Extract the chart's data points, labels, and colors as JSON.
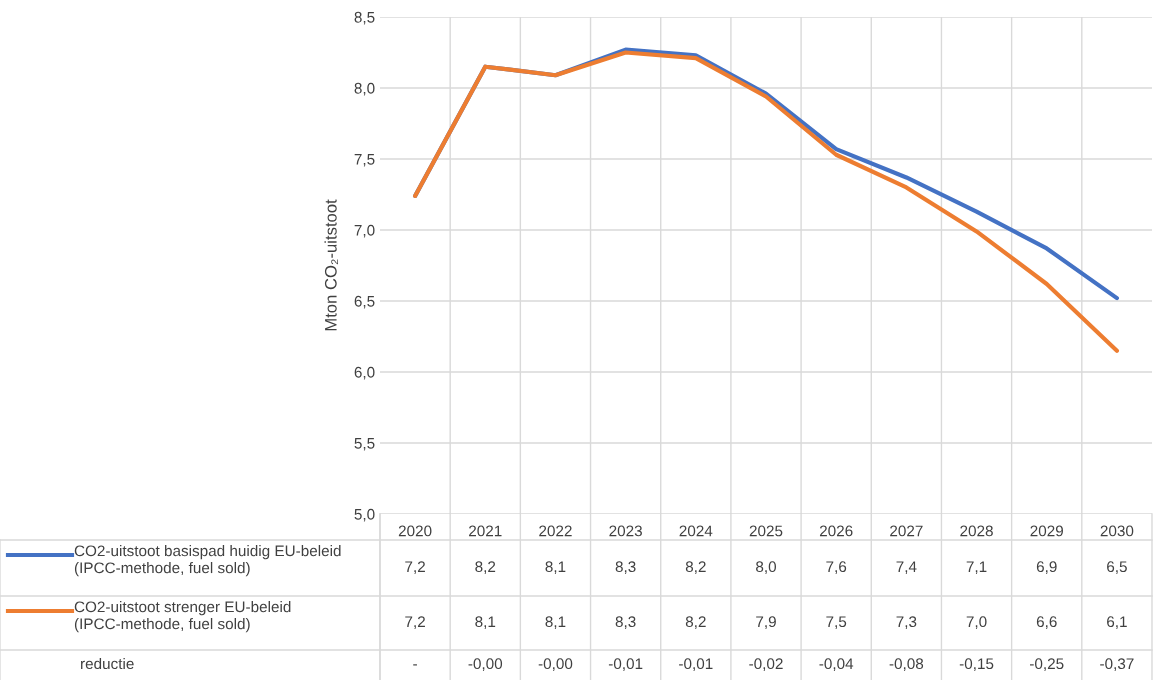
{
  "chart_data": {
    "type": "line",
    "ylabel": "Mton CO₂-uitstoot",
    "categories": [
      "2020",
      "2021",
      "2022",
      "2023",
      "2024",
      "2025",
      "2026",
      "2027",
      "2028",
      "2029",
      "2030"
    ],
    "series": [
      {
        "name": "CO2-uitstoot basispad huidig EU-beleid\n(IPCC-methode, fuel sold)",
        "color": "#4472c4",
        "values": [
          7.24,
          8.15,
          8.09,
          8.27,
          8.23,
          7.96,
          7.57,
          7.37,
          7.13,
          6.87,
          6.52
        ],
        "value_labels": [
          "7,2",
          "8,2",
          "8,1",
          "8,3",
          "8,2",
          "8,0",
          "7,6",
          "7,4",
          "7,1",
          "6,9",
          "6,5"
        ]
      },
      {
        "name": "CO2-uitstoot strenger EU-beleid\n(IPCC-methode, fuel sold)",
        "color": "#ed7d31",
        "values": [
          7.24,
          8.15,
          8.09,
          8.25,
          8.21,
          7.94,
          7.53,
          7.3,
          6.99,
          6.62,
          6.15
        ],
        "value_labels": [
          "7,2",
          "8,1",
          "8,1",
          "8,3",
          "8,2",
          "7,9",
          "7,5",
          "7,3",
          "7,0",
          "6,6",
          "6,1"
        ]
      },
      {
        "name": "reductie",
        "values": [
          null,
          null,
          null,
          null,
          null,
          null,
          null,
          null,
          null,
          null,
          null
        ],
        "value_labels": [
          "-",
          "-0,00",
          "-0,00",
          "-0,01",
          "-0,01",
          "-0,02",
          "-0,04",
          "-0,08",
          "-0,15",
          "-0,25",
          "-0,37"
        ]
      }
    ],
    "ylim": [
      5.0,
      8.5
    ],
    "yticks": [
      {
        "value": 5.0,
        "label": "5,0"
      },
      {
        "value": 5.5,
        "label": "5,5"
      },
      {
        "value": 6.0,
        "label": "6,0"
      },
      {
        "value": 6.5,
        "label": "6,5"
      },
      {
        "value": 7.0,
        "label": "7,0"
      },
      {
        "value": 7.5,
        "label": "7,5"
      },
      {
        "value": 8.0,
        "label": "8,0"
      },
      {
        "value": 8.5,
        "label": "8,5"
      }
    ],
    "grid": true,
    "legend": "bottom",
    "line_style": "solid",
    "marker": "none"
  }
}
